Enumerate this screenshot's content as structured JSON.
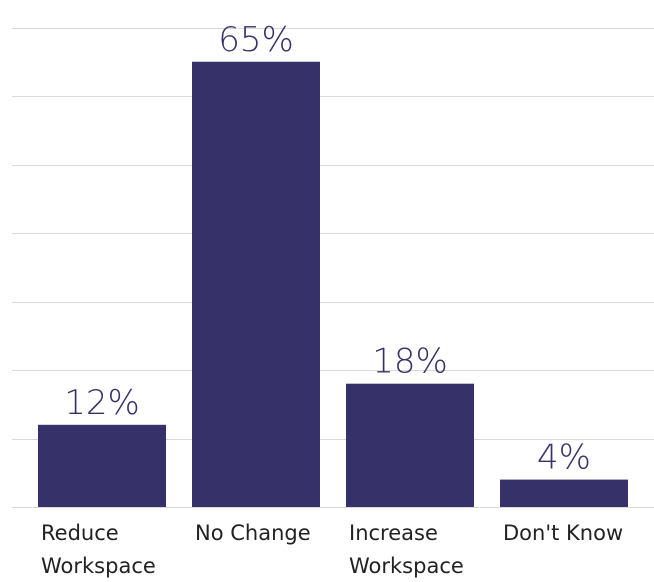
{
  "chart_data": {
    "type": "bar",
    "categories": [
      [
        "Reduce",
        "Workspace"
      ],
      [
        "No Change"
      ],
      [
        "Increase",
        "Workspace"
      ],
      [
        "Don't Know"
      ]
    ],
    "values": [
      12,
      65,
      18,
      4
    ],
    "data_labels": [
      "12%",
      "65%",
      "18%",
      "4%"
    ],
    "ylim": [
      0,
      70
    ],
    "grid": true,
    "legend": "none",
    "colors": {
      "bar": "#373169",
      "label": "#373169"
    }
  }
}
